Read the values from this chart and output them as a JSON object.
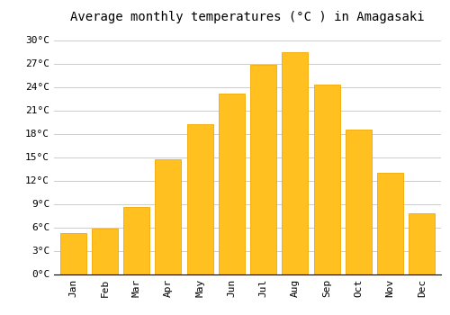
{
  "title": "Average monthly temperatures (°C ) in Amagasaki",
  "months": [
    "Jan",
    "Feb",
    "Mar",
    "Apr",
    "May",
    "Jun",
    "Jul",
    "Aug",
    "Sep",
    "Oct",
    "Nov",
    "Dec"
  ],
  "temperatures": [
    5.2,
    5.8,
    8.6,
    14.7,
    19.2,
    23.1,
    26.8,
    28.4,
    24.3,
    18.5,
    13.0,
    7.8
  ],
  "bar_color": "#FFC020",
  "bar_edge_color": "#F5A800",
  "background_color": "#ffffff",
  "grid_color": "#cccccc",
  "yticks": [
    0,
    3,
    6,
    9,
    12,
    15,
    18,
    21,
    24,
    27,
    30
  ],
  "ylim": [
    0,
    31.5
  ],
  "title_fontsize": 10,
  "tick_fontsize": 8,
  "bar_width": 0.82
}
